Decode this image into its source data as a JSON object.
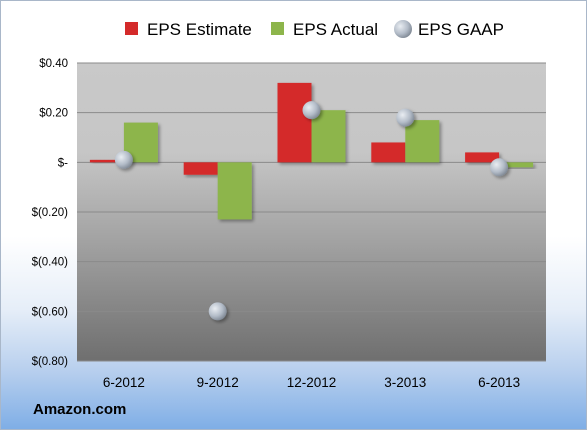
{
  "chart_data": {
    "type": "bar",
    "categories": [
      "6-2012",
      "9-2012",
      "12-2012",
      "3-2013",
      "6-2013"
    ],
    "series": [
      {
        "name": "EPS Estimate",
        "kind": "bar",
        "color": "#d42a2a",
        "values": [
          0.01,
          -0.05,
          0.32,
          0.08,
          0.04
        ]
      },
      {
        "name": "EPS Actual",
        "kind": "bar",
        "color": "#8db54b",
        "values": [
          0.16,
          -0.23,
          0.21,
          0.17,
          -0.02
        ]
      },
      {
        "name": "EPS GAAP",
        "kind": "scatter",
        "color": "#a8b1bd",
        "values": [
          0.01,
          -0.6,
          0.21,
          0.18,
          -0.02
        ]
      }
    ],
    "ylim": [
      -0.8,
      0.4
    ],
    "yticks": [
      0.4,
      0.2,
      0,
      -0.2,
      -0.4,
      -0.6,
      -0.8
    ],
    "ytick_labels": [
      "$0.40",
      "$0.20",
      "$-",
      "$(0.20)",
      "$(0.40)",
      "$(0.60)",
      "$(0.80)"
    ],
    "grid": true,
    "legend_position": "top"
  },
  "footer": {
    "source": "Amazon.com"
  }
}
